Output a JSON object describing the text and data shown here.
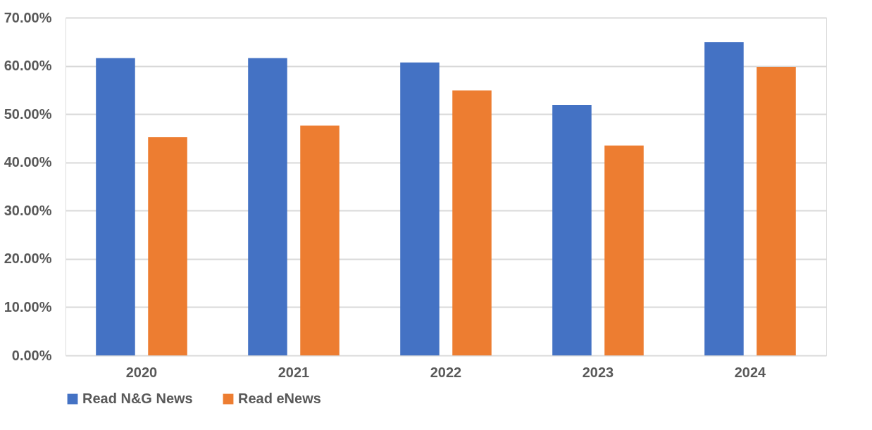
{
  "chart_data": {
    "type": "bar",
    "categories": [
      "2020",
      "2021",
      "2022",
      "2023",
      "2024"
    ],
    "series": [
      {
        "name": "Read N&G News",
        "color": "#4472c4",
        "values": [
          61.6,
          61.6,
          60.7,
          51.9,
          64.9
        ]
      },
      {
        "name": "Read eNews",
        "color": "#ed7d31",
        "values": [
          45.2,
          47.6,
          54.9,
          43.5,
          59.8
        ]
      }
    ],
    "ylim": [
      0,
      70
    ],
    "yticks": [
      {
        "value": 0,
        "label": "0.00%"
      },
      {
        "value": 10,
        "label": "10.00%"
      },
      {
        "value": 20,
        "label": "20.00%"
      },
      {
        "value": 30,
        "label": "30.00%"
      },
      {
        "value": 40,
        "label": "40.00%"
      },
      {
        "value": 50,
        "label": "50.00%"
      },
      {
        "value": 60,
        "label": "60.00%"
      },
      {
        "value": 70,
        "label": "70.00%"
      }
    ],
    "grid": "y",
    "legend": "bottom"
  }
}
